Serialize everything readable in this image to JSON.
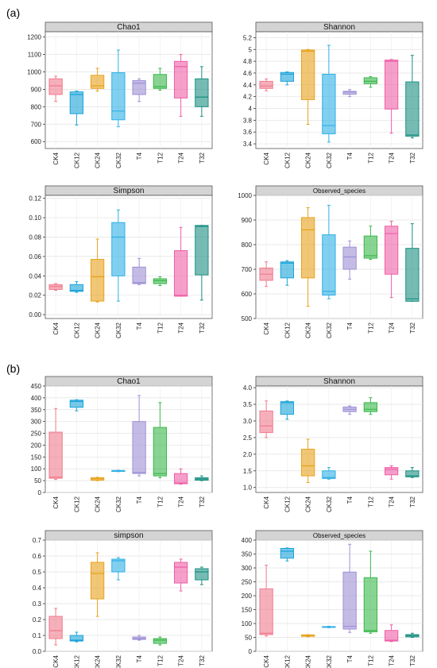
{
  "panels": [
    {
      "label": "(a)"
    },
    {
      "label": "(b)"
    }
  ],
  "colors": [
    "#f07b8e",
    "#1aa3d9",
    "#e8a21a",
    "#2fb0e6",
    "#9e8fd6",
    "#39b84a",
    "#ee5fa6",
    "#1a8f82"
  ],
  "categories": [
    "CK4",
    "CK12",
    "CK24",
    "CK32",
    "T4",
    "T12",
    "T24",
    "T32"
  ],
  "chart_data": [
    {
      "type": "box",
      "title": "Chao1",
      "panel": "(a)",
      "categories": [
        "CK4",
        "CK12",
        "CK24",
        "CK32",
        "T4",
        "T12",
        "T24",
        "T32"
      ],
      "yticks": [
        600,
        700,
        800,
        900,
        1000,
        1100,
        1200
      ],
      "ylim": [
        560,
        1230
      ],
      "boxes": [
        {
          "min": 830,
          "q1": 870,
          "median": 920,
          "q3": 960,
          "max": 975
        },
        {
          "min": 695,
          "q1": 760,
          "median": 870,
          "q3": 885,
          "max": 890
        },
        {
          "min": 890,
          "q1": 905,
          "median": 920,
          "q3": 980,
          "max": 1020
        },
        {
          "min": 685,
          "q1": 725,
          "median": 775,
          "q3": 995,
          "max": 1125
        },
        {
          "min": 830,
          "q1": 870,
          "median": 935,
          "q3": 950,
          "max": 960
        },
        {
          "min": 895,
          "q1": 905,
          "median": 915,
          "q3": 985,
          "max": 1020
        },
        {
          "min": 745,
          "q1": 850,
          "median": 1030,
          "q3": 1060,
          "max": 1100
        },
        {
          "min": 745,
          "q1": 800,
          "median": 855,
          "q3": 960,
          "max": 1030
        }
      ]
    },
    {
      "type": "box",
      "title": "Shannon",
      "panel": "(a)",
      "categories": [
        "CK4",
        "CK12",
        "CK24",
        "CK32",
        "T4",
        "T12",
        "T24",
        "T32"
      ],
      "yticks": [
        3.4,
        3.6,
        3.8,
        4.0,
        4.2,
        4.4,
        4.6,
        4.8,
        5.0,
        5.2
      ],
      "ylim": [
        3.32,
        5.3
      ],
      "boxes": [
        {
          "min": 4.3,
          "q1": 4.34,
          "median": 4.38,
          "q3": 4.46,
          "max": 4.5
        },
        {
          "min": 4.4,
          "q1": 4.46,
          "median": 4.58,
          "q3": 4.61,
          "max": 4.62
        },
        {
          "min": 3.73,
          "q1": 4.15,
          "median": 4.97,
          "q3": 4.99,
          "max": 5.0
        },
        {
          "min": 3.43,
          "q1": 3.57,
          "median": 3.71,
          "q3": 4.58,
          "max": 5.07
        },
        {
          "min": 4.2,
          "q1": 4.24,
          "median": 4.28,
          "q3": 4.29,
          "max": 4.32
        },
        {
          "min": 4.36,
          "q1": 4.42,
          "median": 4.46,
          "q3": 4.52,
          "max": 4.54
        },
        {
          "min": 3.58,
          "q1": 3.99,
          "median": 4.8,
          "q3": 4.82,
          "max": 4.83
        },
        {
          "min": 3.5,
          "q1": 3.53,
          "median": 3.55,
          "q3": 4.45,
          "max": 4.9
        }
      ]
    },
    {
      "type": "box",
      "title": "Simpson",
      "panel": "(a)",
      "categories": [
        "CK4",
        "CK12",
        "CK24",
        "CK32",
        "T4",
        "T12",
        "T24",
        "T32"
      ],
      "yticks": [
        0.0,
        0.02,
        0.04,
        0.06,
        0.08,
        0.1,
        0.12
      ],
      "ylim": [
        -0.004,
        0.123
      ],
      "ytick_labels": [
        "0.00",
        "0.02",
        "0.04",
        "0.06",
        "0.08",
        "0.10",
        "0.12"
      ],
      "boxes": [
        {
          "min": 0.025,
          "q1": 0.026,
          "median": 0.029,
          "q3": 0.031,
          "max": 0.032
        },
        {
          "min": 0.023,
          "q1": 0.024,
          "median": 0.025,
          "q3": 0.031,
          "max": 0.034
        },
        {
          "min": 0.013,
          "q1": 0.014,
          "median": 0.039,
          "q3": 0.057,
          "max": 0.078
        },
        {
          "min": 0.014,
          "q1": 0.04,
          "median": 0.08,
          "q3": 0.095,
          "max": 0.108
        },
        {
          "min": 0.031,
          "q1": 0.032,
          "median": 0.033,
          "q3": 0.049,
          "max": 0.058
        },
        {
          "min": 0.03,
          "q1": 0.032,
          "median": 0.035,
          "q3": 0.037,
          "max": 0.039
        },
        {
          "min": 0.019,
          "q1": 0.019,
          "median": 0.02,
          "q3": 0.066,
          "max": 0.09
        },
        {
          "min": 0.015,
          "q1": 0.041,
          "median": 0.091,
          "q3": 0.092,
          "max": 0.092
        }
      ]
    },
    {
      "type": "box",
      "title": "Observed_species",
      "panel": "(a)",
      "categories": [
        "CK4",
        "CK12",
        "CK24",
        "CK32",
        "T4",
        "T12",
        "T24",
        "T32"
      ],
      "yticks": [
        500,
        600,
        700,
        800,
        900,
        1000
      ],
      "ylim": [
        500,
        1000
      ],
      "boxes": [
        {
          "min": 630,
          "q1": 655,
          "median": 680,
          "q3": 705,
          "max": 730
        },
        {
          "min": 635,
          "q1": 665,
          "median": 725,
          "q3": 730,
          "max": 735
        },
        {
          "min": 550,
          "q1": 665,
          "median": 860,
          "q3": 910,
          "max": 950
        },
        {
          "min": 580,
          "q1": 595,
          "median": 610,
          "q3": 840,
          "max": 960
        },
        {
          "min": 660,
          "q1": 700,
          "median": 750,
          "q3": 790,
          "max": 815
        },
        {
          "min": 740,
          "q1": 745,
          "median": 755,
          "q3": 835,
          "max": 875
        },
        {
          "min": 585,
          "q1": 680,
          "median": 845,
          "q3": 875,
          "max": 895
        },
        {
          "min": 570,
          "q1": 570,
          "median": 580,
          "q3": 785,
          "max": 885
        }
      ]
    },
    {
      "type": "box",
      "title": "Chao1",
      "panel": "(b)",
      "categories": [
        "CK4",
        "CK12",
        "CK24",
        "CK32",
        "T4",
        "T12",
        "T24",
        "T32"
      ],
      "yticks": [
        0,
        50,
        100,
        150,
        200,
        250,
        300,
        350,
        400,
        450
      ],
      "ylim": [
        0,
        450
      ],
      "boxes": [
        {
          "min": 55,
          "q1": 60,
          "median": 65,
          "q3": 255,
          "max": 355
        },
        {
          "min": 345,
          "q1": 360,
          "median": 385,
          "q3": 390,
          "max": 392
        },
        {
          "min": 50,
          "q1": 52,
          "median": 58,
          "q3": 62,
          "max": 64
        },
        {
          "min": 88,
          "q1": 89,
          "median": 91,
          "q3": 93,
          "max": 94
        },
        {
          "min": 70,
          "q1": 80,
          "median": 85,
          "q3": 300,
          "max": 410
        },
        {
          "min": 62,
          "q1": 70,
          "median": 80,
          "q3": 275,
          "max": 380
        },
        {
          "min": 35,
          "q1": 37,
          "median": 40,
          "q3": 80,
          "max": 100
        },
        {
          "min": 50,
          "q1": 52,
          "median": 57,
          "q3": 62,
          "max": 70
        }
      ]
    },
    {
      "type": "box",
      "title": "Shannon",
      "panel": "(b)",
      "categories": [
        "CK4",
        "CK12",
        "CK24",
        "CK32",
        "T4",
        "T12",
        "T24",
        "T32"
      ],
      "yticks": [
        1.0,
        1.5,
        2.0,
        2.5,
        3.0,
        3.5,
        4.0
      ],
      "ylim": [
        0.85,
        4.05
      ],
      "ytick_labels": [
        "1.0",
        "1.5",
        "2.0",
        "2.5",
        "3.0",
        "3.5",
        "4.0"
      ],
      "boxes": [
        {
          "min": 2.5,
          "q1": 2.65,
          "median": 2.85,
          "q3": 3.3,
          "max": 3.6
        },
        {
          "min": 3.05,
          "q1": 3.2,
          "median": 3.55,
          "q3": 3.58,
          "max": 3.6
        },
        {
          "min": 1.15,
          "q1": 1.35,
          "median": 1.65,
          "q3": 2.15,
          "max": 2.45
        },
        {
          "min": 1.25,
          "q1": 1.27,
          "median": 1.3,
          "q3": 1.5,
          "max": 1.6
        },
        {
          "min": 3.2,
          "q1": 3.28,
          "median": 3.35,
          "q3": 3.42,
          "max": 3.45
        },
        {
          "min": 3.2,
          "q1": 3.28,
          "median": 3.35,
          "q3": 3.55,
          "max": 3.7
        },
        {
          "min": 1.25,
          "q1": 1.38,
          "median": 1.55,
          "q3": 1.6,
          "max": 1.65
        },
        {
          "min": 1.3,
          "q1": 1.32,
          "median": 1.35,
          "q3": 1.5,
          "max": 1.6
        }
      ]
    },
    {
      "type": "box",
      "title": "simpson",
      "panel": "(b)",
      "categories": [
        "CK4",
        "CK12",
        "CK24",
        "CK32",
        "T4",
        "T12",
        "T24",
        "T32"
      ],
      "yticks": [
        0.0,
        0.1,
        0.2,
        0.3,
        0.4,
        0.5,
        0.6,
        0.7
      ],
      "ylim": [
        0,
        0.7
      ],
      "ytick_labels": [
        "0.0",
        "0.1",
        "0.2",
        "0.3",
        "0.4",
        "0.5",
        "0.6",
        "0.7"
      ],
      "boxes": [
        {
          "min": 0.04,
          "q1": 0.08,
          "median": 0.13,
          "q3": 0.22,
          "max": 0.27
        },
        {
          "min": 0.06,
          "q1": 0.065,
          "median": 0.07,
          "q3": 0.1,
          "max": 0.12
        },
        {
          "min": 0.22,
          "q1": 0.33,
          "median": 0.49,
          "q3": 0.56,
          "max": 0.62
        },
        {
          "min": 0.45,
          "q1": 0.5,
          "median": 0.57,
          "q3": 0.58,
          "max": 0.59
        },
        {
          "min": 0.07,
          "q1": 0.075,
          "median": 0.08,
          "q3": 0.09,
          "max": 0.1
        },
        {
          "min": 0.04,
          "q1": 0.05,
          "median": 0.07,
          "q3": 0.08,
          "max": 0.09
        },
        {
          "min": 0.38,
          "q1": 0.43,
          "median": 0.53,
          "q3": 0.56,
          "max": 0.58
        },
        {
          "min": 0.42,
          "q1": 0.45,
          "median": 0.5,
          "q3": 0.52,
          "max": 0.53
        }
      ]
    },
    {
      "type": "box",
      "title": "Observed_species",
      "panel": "(b)",
      "categories": [
        "CK4",
        "CK12",
        "CK24",
        "CK32",
        "T4",
        "T12",
        "T24",
        "T32"
      ],
      "yticks": [
        0,
        50,
        100,
        150,
        200,
        250,
        300,
        350,
        400
      ],
      "ylim": [
        0,
        400
      ],
      "boxes": [
        {
          "min": 55,
          "q1": 60,
          "median": 65,
          "q3": 225,
          "max": 310
        },
        {
          "min": 325,
          "q1": 335,
          "median": 360,
          "q3": 370,
          "max": 372
        },
        {
          "min": 52,
          "q1": 54,
          "median": 57,
          "q3": 59,
          "max": 60
        },
        {
          "min": 85,
          "q1": 86,
          "median": 87,
          "q3": 89,
          "max": 90
        },
        {
          "min": 68,
          "q1": 80,
          "median": 90,
          "q3": 285,
          "max": 385
        },
        {
          "min": 65,
          "q1": 70,
          "median": 75,
          "q3": 265,
          "max": 360
        },
        {
          "min": 35,
          "q1": 37,
          "median": 40,
          "q3": 75,
          "max": 95
        },
        {
          "min": 50,
          "q1": 52,
          "median": 57,
          "q3": 60,
          "max": 65
        }
      ]
    }
  ]
}
